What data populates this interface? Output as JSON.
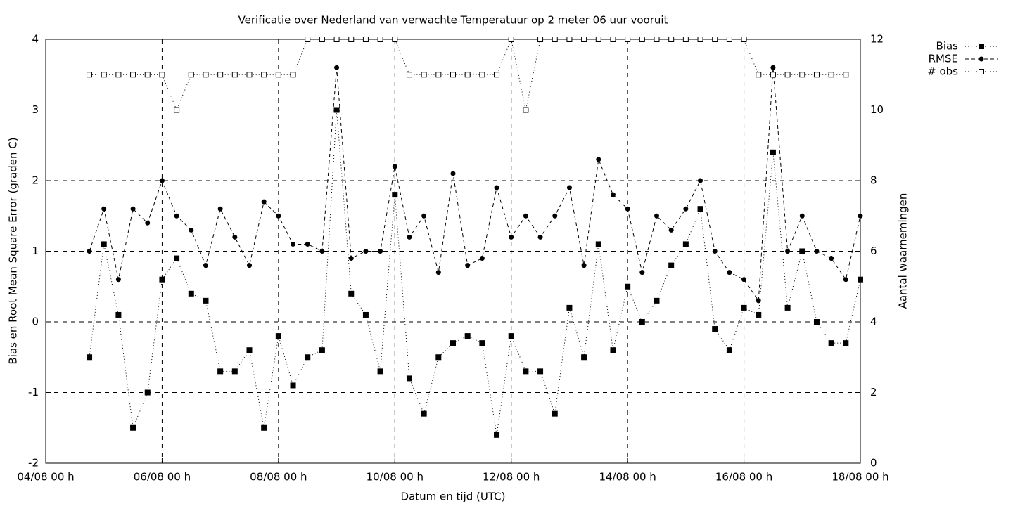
{
  "chart_data": {
    "type": "line",
    "title": "Verificatie over Nederland van verwachte Temperatuur op 2 meter 06 uur vooruit",
    "x_label": "Datum en tijd (UTC)",
    "y_label": "Bias en Root Mean Square Error (graden C)",
    "y2_label": "Aantal waarnemingen",
    "x": [
      18,
      24,
      30,
      36,
      42,
      48,
      54,
      60,
      66,
      72,
      78,
      84,
      90,
      96,
      102,
      108,
      114,
      120,
      126,
      132,
      138,
      144,
      150,
      156,
      162,
      168,
      174,
      180,
      186,
      192,
      198,
      204,
      210,
      216,
      222,
      228,
      234,
      240,
      246,
      252,
      258,
      264,
      270,
      276,
      282,
      288,
      294,
      300,
      306,
      312,
      318,
      324,
      330,
      336
    ],
    "xlim": [
      0,
      336
    ],
    "xticks": [
      {
        "value": 0,
        "label": "04/08 00 h"
      },
      {
        "value": 48,
        "label": "06/08 00 h"
      },
      {
        "value": 96,
        "label": "08/08 00 h"
      },
      {
        "value": 144,
        "label": "10/08 00 h"
      },
      {
        "value": 192,
        "label": "12/08 00 h"
      },
      {
        "value": 240,
        "label": "14/08 00 h"
      },
      {
        "value": 288,
        "label": "16/08 00 h"
      },
      {
        "value": 336,
        "label": "18/08 00 h"
      }
    ],
    "ylim": [
      -2,
      4
    ],
    "yticks": [
      -2,
      -1,
      0,
      1,
      2,
      3,
      4
    ],
    "y2lim": [
      0,
      12
    ],
    "y2ticks": [
      0,
      2,
      4,
      6,
      8,
      10,
      12
    ],
    "grid": true,
    "legend": "outside-top-right",
    "series": [
      {
        "name": "Bias",
        "color": "#000000",
        "dash": "1,3",
        "marker": "filled-square",
        "values": [
          -0.5,
          1.1,
          0.1,
          -1.5,
          -1.0,
          0.6,
          0.9,
          0.4,
          0.3,
          -0.7,
          -0.7,
          -0.4,
          -1.5,
          -0.2,
          -0.9,
          -0.5,
          -0.4,
          3.0,
          0.4,
          0.1,
          -0.7,
          1.8,
          -0.8,
          -1.3,
          -0.5,
          -0.3,
          -0.2,
          -0.3,
          -1.6,
          -0.2,
          -0.7,
          -0.7,
          -1.3,
          0.2,
          -0.5,
          1.1,
          -0.4,
          0.5,
          0.0,
          0.3,
          0.8,
          1.1,
          1.6,
          -0.1,
          -0.4,
          0.2,
          0.1,
          2.4,
          0.2,
          1.0,
          0.0,
          -0.3,
          -0.3,
          0.6
        ]
      },
      {
        "name": "RMSE",
        "color": "#000000",
        "dash": "5,4",
        "marker": "filled-circle",
        "values": [
          1.0,
          1.6,
          0.6,
          1.6,
          1.4,
          2.0,
          1.5,
          1.3,
          0.8,
          1.6,
          1.2,
          0.8,
          1.7,
          1.5,
          1.1,
          1.1,
          1.0,
          3.6,
          0.9,
          1.0,
          1.0,
          2.2,
          1.2,
          1.5,
          0.7,
          2.1,
          0.8,
          0.9,
          1.9,
          1.2,
          1.5,
          1.2,
          1.5,
          1.9,
          0.8,
          2.3,
          1.8,
          1.6,
          0.7,
          1.5,
          1.3,
          1.6,
          2.0,
          1.0,
          0.7,
          0.6,
          0.3,
          3.6,
          1.0,
          1.5,
          1.0,
          0.9,
          0.6,
          1.5
        ]
      },
      {
        "name": "# obs",
        "color": "#000000",
        "dash": "1,3",
        "marker": "open-square",
        "axis": "y2",
        "values": [
          11,
          11,
          11,
          11,
          11,
          11,
          10,
          11,
          11,
          11,
          11,
          11,
          11,
          11,
          11,
          12,
          12,
          12,
          12,
          12,
          12,
          12,
          11,
          11,
          11,
          11,
          11,
          11,
          11,
          12,
          10,
          12,
          12,
          12,
          12,
          12,
          12,
          12,
          12,
          12,
          12,
          12,
          12,
          12,
          12,
          12,
          11,
          11,
          11,
          11,
          11,
          11,
          11,
          null
        ]
      }
    ]
  }
}
